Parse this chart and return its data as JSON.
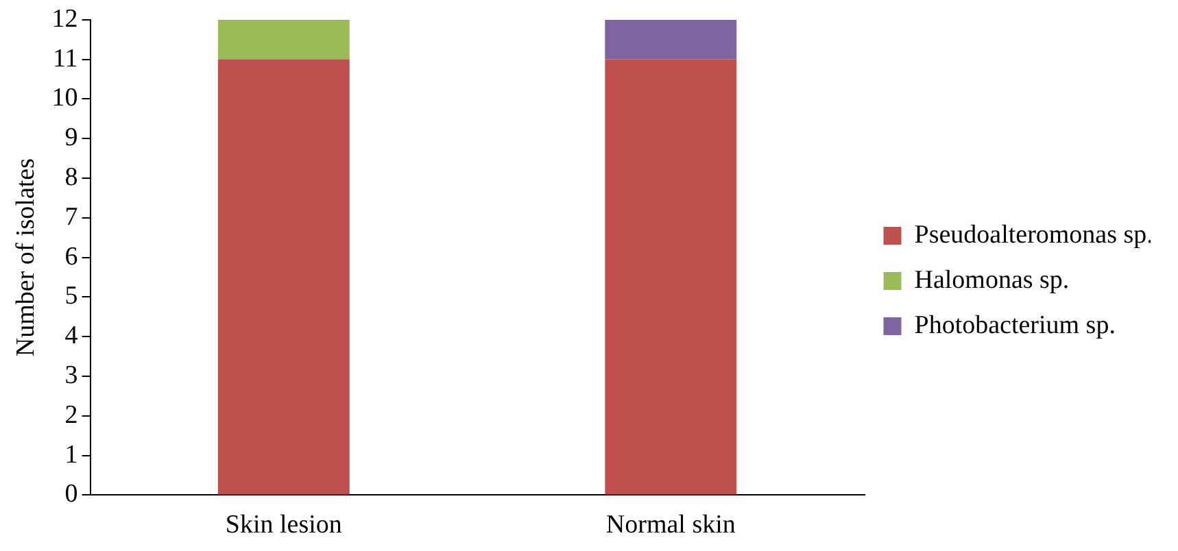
{
  "chart_data": {
    "type": "bar",
    "ylabel": "Number of isolates",
    "categories": [
      "Skin lesion",
      "Normal skin"
    ],
    "stacked": true,
    "ylim": [
      0,
      12
    ],
    "yticks": [
      0,
      1,
      2,
      3,
      4,
      5,
      6,
      7,
      8,
      9,
      10,
      11,
      12
    ],
    "grid": false,
    "legend": "right",
    "series": [
      {
        "name": "Pseudoalteromonas sp.",
        "color": "#c0504d",
        "values": [
          11,
          11
        ]
      },
      {
        "name": "Halomonas sp.",
        "color": "#9bbb59",
        "values": [
          1,
          0
        ]
      },
      {
        "name": "Photobacterium sp.",
        "color": "#8064a2",
        "values": [
          0,
          1
        ]
      }
    ]
  }
}
